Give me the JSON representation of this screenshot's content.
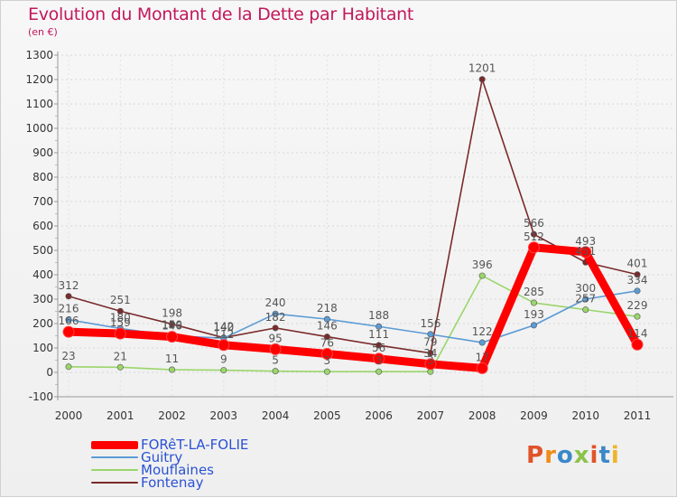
{
  "chart_data": {
    "type": "line",
    "title": "Evolution du Montant de la Dette par Habitant",
    "subtitle": "(en €)",
    "categories": [
      "2000",
      "2001",
      "2002",
      "2003",
      "2004",
      "2005",
      "2006",
      "2007",
      "2008",
      "2009",
      "2010",
      "2011"
    ],
    "ylim": [
      -100,
      1300
    ],
    "yticks": [
      -100,
      0,
      100,
      200,
      300,
      400,
      500,
      600,
      700,
      800,
      900,
      1000,
      1100,
      1200,
      1300
    ],
    "series": [
      {
        "name": "FORêT-LA-FOLIE",
        "color": "#ff0000",
        "values": [
          166,
          159,
          146,
          112,
          95,
          76,
          56,
          34,
          17,
          512,
          493,
          114
        ]
      },
      {
        "name": "Guitry",
        "color": "#5b9bd5",
        "values": [
          216,
          180,
          150,
          140,
          240,
          218,
          188,
          156,
          122,
          193,
          300,
          334
        ]
      },
      {
        "name": "Mouflaines",
        "color": "#9ad66a",
        "values": [
          23,
          21,
          11,
          9,
          5,
          3,
          3,
          3,
          396,
          285,
          257,
          229
        ]
      },
      {
        "name": "Fontenay",
        "color": "#7b2a2a",
        "values": [
          312,
          251,
          198,
          142,
          182,
          146,
          111,
          79,
          1201,
          566,
          451,
          401
        ]
      }
    ]
  },
  "logo_text": "Proxiti"
}
